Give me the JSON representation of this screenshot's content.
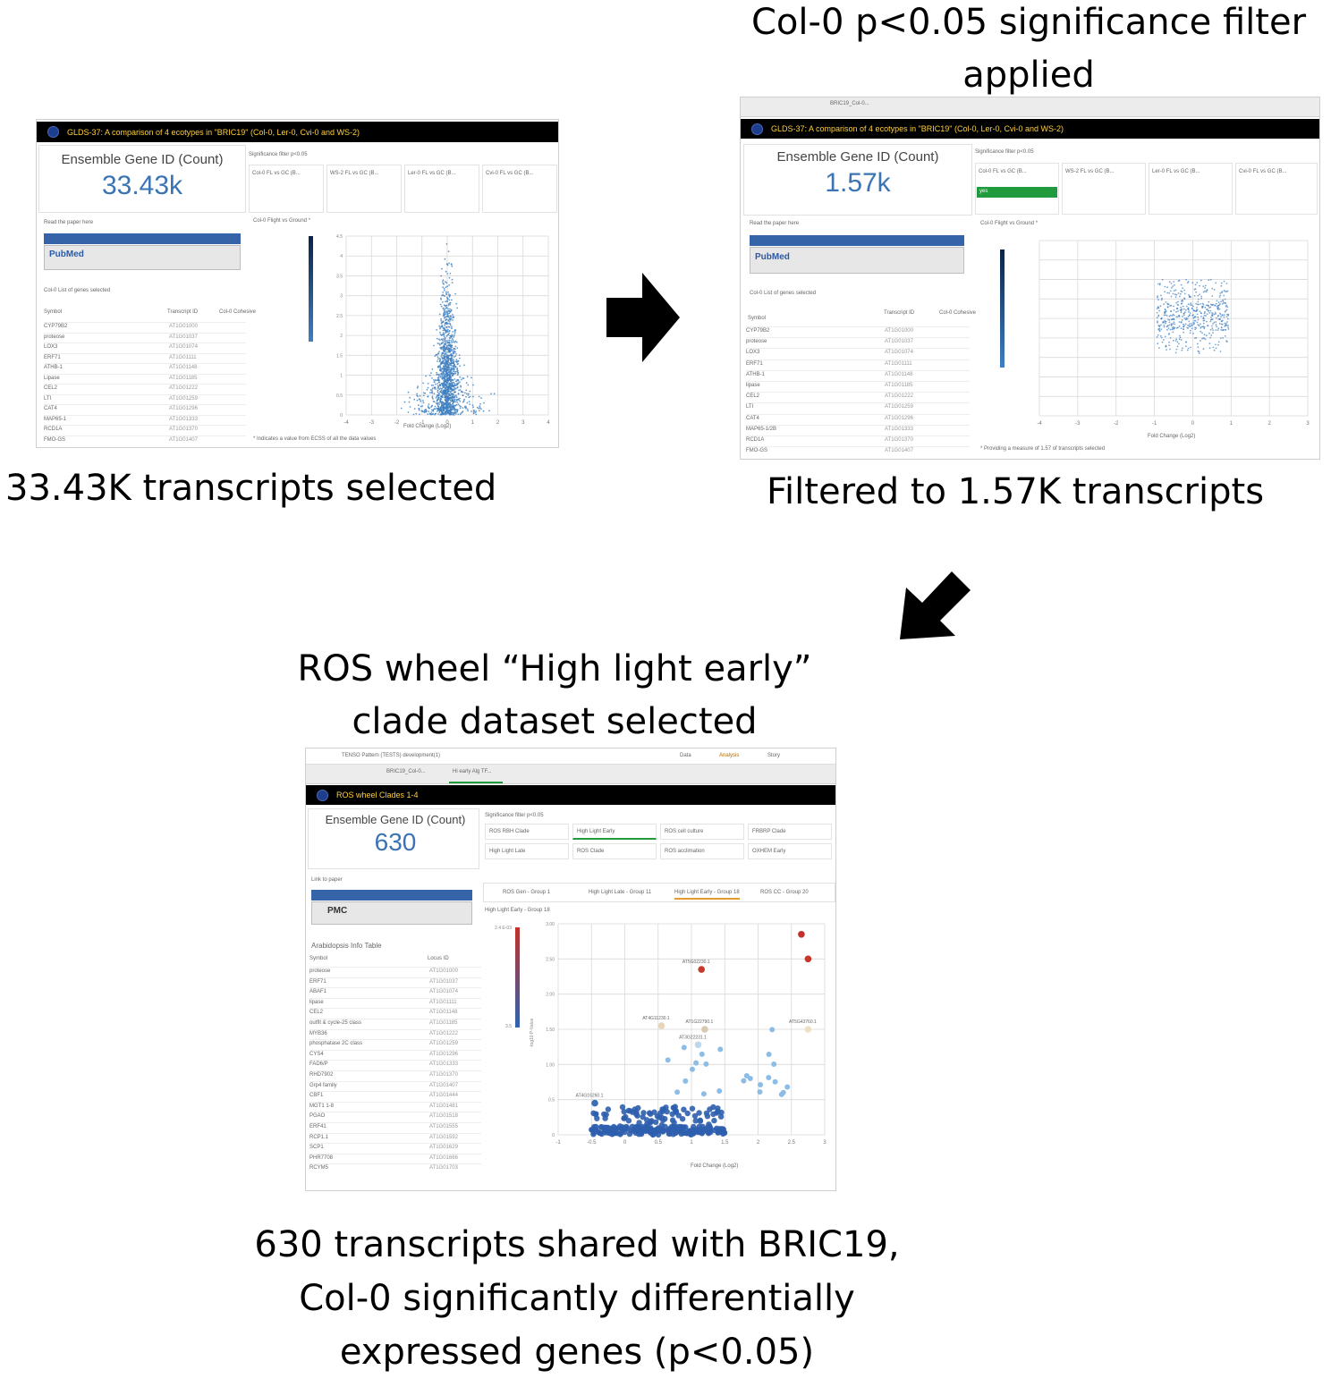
{
  "captions": {
    "top_left": "33.43K transcripts selected",
    "top_right_title": [
      "Col-0 p<0.05 significance filter",
      "applied"
    ],
    "top_right": "Filtered to 1.57K transcripts",
    "bottom_title": [
      "ROS wheel “High light early”",
      "clade dataset selected"
    ],
    "bottom": [
      "630 transcripts shared with BRIC19,",
      "Col-0 significantly differentially",
      "expressed genes (p<0.05)"
    ]
  },
  "arrows": {
    "right": "arrow-right",
    "down_left": "arrow-down-left"
  },
  "screens": {
    "s1": {
      "title": "GLDS-37: A comparison of 4 ecotypes in \"BRIC19\" (Col-0, Ler-0, Cvi-0 and WS-2)",
      "kpi_label": "Ensemble Gene ID (Count)",
      "kpi_value": "33.43k",
      "filter_header": "Significance filter p<0.05",
      "filters": [
        "Col-0 FL vs GC (B...",
        "WS-2 FL vs GC (B...",
        "Ler-0 FL vs GC (B...",
        "Cvi-0 FL vs GC (B..."
      ],
      "paper_link": "Read the paper here",
      "list_title": "Col-0 List of genes selected",
      "table_header": [
        "Symbol",
        "Transcript ID",
        "Col-0 Cohesive"
      ],
      "rows": [
        "CYP79B2",
        "proteose",
        "LOX3",
        "ERF71",
        "ATHB-1",
        "Lipase",
        "CEL2",
        "LTI",
        "CAT4",
        "MAP65-1",
        "RCD1A",
        "FMO-GS"
      ],
      "plot_title": "Col-0 Flight vs Ground *",
      "xlabel": "Fold Change (Log2)",
      "footnote": "* Indicates a value from ECSS of all the data values"
    },
    "s2": {
      "tab": "BRIC19_Col-0...",
      "title": "GLDS-37: A comparison of 4 ecotypes in \"BRIC19\" (Col-0, Ler-0, Cvi-0 and WS-2)",
      "kpi_label": "Ensemble Gene ID (Count)",
      "kpi_value": "1.57k",
      "filter_header": "Significance filter p<0.05",
      "filters": [
        "Col-0 FL vs GC (B...",
        "WS-2 FL vs GC (B...",
        "Ler-0 FL vs GC (B...",
        "Cvi-0 FL vs GC (B..."
      ],
      "selected_filter": "yes",
      "paper_link": "Read the paper here",
      "list_title": "Col-0 List of genes selected",
      "table_header": [
        "Symbol",
        "Transcript ID",
        "Col-0 Cohesive"
      ],
      "rows": [
        "CYP79B2",
        "proteose",
        "LOX3",
        "ERF71",
        "ATHB-1",
        "lipase",
        "CEL2",
        "LTI",
        "CAT4",
        "MAP65-1/2B",
        "RCD1A",
        "FMO-GS"
      ],
      "plot_title": "Col-0 Flight vs Ground *",
      "xlabel": "Fold Change (Log2)",
      "footnote": "* Providing a measure of 1.57 of transcripts selected"
    },
    "s3": {
      "app_title": "TENSO Pattern (TESTS) development(1)",
      "nav": [
        "Data",
        "Analysis",
        "Story"
      ],
      "tabs": [
        "BRIC19_Col-0...",
        "Hi early Alg TF..."
      ],
      "title": "ROS wheel Clades 1-4",
      "kpi_label": "Ensemble Gene ID (Count)",
      "kpi_value": "630",
      "filter_header": "Significance filter p<0.05",
      "clades": [
        "ROS RBH Clade",
        "High Light Early",
        "ROS cell culture",
        "FRBRP Clade",
        "High Light Late",
        "ROS Clade",
        "ROS acclimation",
        "OXHEM Early"
      ],
      "sub_tabs": [
        "ROS Gen - Group 1",
        "High Light Late - Group 11",
        "High Light Early - Group 18",
        "ROS CC - Group 20"
      ],
      "paper_link": "Link to paper",
      "pmc": "PMC",
      "list_title": "Arabidopsis Info Table",
      "table_header": [
        "Symbol",
        "Locus ID"
      ],
      "rows": [
        "proteose",
        "ERF71",
        "ABAF1",
        "lipase",
        "CEL2",
        "outfit & cycle-25 class",
        "MYB36",
        "phosphatase 2C class",
        "CYS4",
        "FAD6/P",
        "RHD7902",
        "Grp4 family",
        "CBF1",
        "MGT1 1-8",
        "PGAO",
        "ERF41",
        "RCP1.1",
        "SCP1",
        "PHR7708",
        "RCYM5"
      ],
      "plot_title": "High Light Early - Group 18",
      "xlabel": "Fold Change (Log2)",
      "ylabel": "-log10 P-Value",
      "point_labels": [
        "AT5G02230.1",
        "AT4G11230.1",
        "AT1G22790.1",
        "AT5G43760.1",
        "AT3G22231.1",
        "AT4G16260.1"
      ]
    }
  },
  "chart_data": [
    {
      "type": "scatter",
      "title": "Col-0 Flight vs Ground *",
      "xlabel": "Fold Change (Log2)",
      "ylabel": "",
      "xlim": [
        -4,
        4
      ],
      "ylim": [
        0,
        4.5
      ],
      "x_ticks": [
        "-4",
        "-3",
        "-2",
        "-1",
        "0",
        "1",
        "2",
        "3",
        "4"
      ],
      "y_ticks": [
        "0",
        "0.5",
        "1",
        "1.5",
        "2",
        "2.5",
        "3",
        "3.5",
        "4",
        "4.5"
      ],
      "colors": {
        "points": "#3f7fc1"
      },
      "description_points": "33.43k transcripts concentrated near x=0"
    },
    {
      "type": "scatter",
      "title": "Col-0 Flight vs Ground *",
      "xlabel": "Fold Change (Log2)",
      "xlim": [
        -4,
        3
      ],
      "ylim": [
        0,
        4.5
      ],
      "x_ticks": [
        "-4",
        "-3",
        "-2",
        "-1",
        "0",
        "1",
        "2",
        "3"
      ],
      "colors": {
        "points": "#3f7fc1"
      }
    },
    {
      "type": "scatter",
      "title": "High Light Early - Group 18",
      "xlabel": "Fold Change (Log2)",
      "ylabel": "-log10 P-Value",
      "xlim": [
        -1,
        3
      ],
      "ylim": [
        0,
        3
      ],
      "x_ticks": [
        "-1",
        "-0.5",
        "0",
        "0.5",
        "1",
        "1.5",
        "2",
        "2.5",
        "3"
      ],
      "y_ticks": [
        "0",
        "0.5",
        "1.00",
        "1.50",
        "2.00",
        "2.50",
        "3.00"
      ],
      "colorbar": [
        "2.4 E-03",
        "3.5"
      ],
      "highlight_points": [
        {
          "label": "AT5G02230.1",
          "x": 1.15,
          "y": 2.35,
          "color": "#c63a2a"
        },
        {
          "label": "",
          "x": 2.65,
          "y": 2.85,
          "color": "#c1312a"
        },
        {
          "label": "",
          "x": 2.75,
          "y": 2.5,
          "color": "#c5372b"
        },
        {
          "label": "AT4G11230.1",
          "x": 0.55,
          "y": 1.55,
          "color": "#e7d4b9"
        },
        {
          "label": "AT1G22790.1",
          "x": 1.2,
          "y": 1.5,
          "color": "#d9c8b0"
        },
        {
          "label": "AT3G22231.1",
          "x": 1.1,
          "y": 1.28,
          "color": "#bcd6ec"
        },
        {
          "label": "AT5G43760.1",
          "x": 2.75,
          "y": 1.5,
          "color": "#ece0c6"
        },
        {
          "label": "AT4G16260.1",
          "x": -0.45,
          "y": 0.45,
          "color": "#3a6fb6"
        }
      ]
    }
  ]
}
